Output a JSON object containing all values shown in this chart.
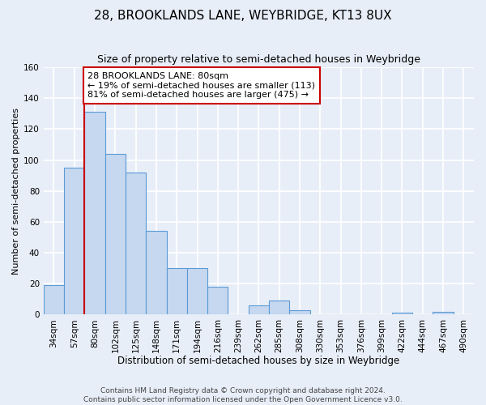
{
  "title": "28, BROOKLANDS LANE, WEYBRIDGE, KT13 8UX",
  "subtitle": "Size of property relative to semi-detached houses in Weybridge",
  "xlabel": "Distribution of semi-detached houses by size in Weybridge",
  "ylabel": "Number of semi-detached properties",
  "categories": [
    "34sqm",
    "57sqm",
    "80sqm",
    "102sqm",
    "125sqm",
    "148sqm",
    "171sqm",
    "194sqm",
    "216sqm",
    "239sqm",
    "262sqm",
    "285sqm",
    "308sqm",
    "330sqm",
    "353sqm",
    "376sqm",
    "399sqm",
    "422sqm",
    "444sqm",
    "467sqm",
    "490sqm"
  ],
  "values": [
    19,
    95,
    131,
    104,
    92,
    54,
    30,
    30,
    18,
    0,
    6,
    9,
    3,
    0,
    0,
    0,
    0,
    1,
    0,
    2,
    0
  ],
  "bar_color": "#c5d8f0",
  "bar_edge_color": "#5b9bd5",
  "bar_edge_width": 0.8,
  "property_line_index": 2,
  "property_line_color": "#cc0000",
  "ylim": [
    0,
    160
  ],
  "yticks": [
    0,
    20,
    40,
    60,
    80,
    100,
    120,
    140,
    160
  ],
  "annotation_line1": "28 BROOKLANDS LANE: 80sqm",
  "annotation_line2": "← 19% of semi-detached houses are smaller (113)",
  "annotation_line3": "81% of semi-detached houses are larger (475) →",
  "annotation_box_color": "#ffffff",
  "annotation_box_edge": "#cc0000",
  "bg_color": "#e8eef8",
  "grid_color": "#ffffff",
  "footer1": "Contains HM Land Registry data © Crown copyright and database right 2024.",
  "footer2": "Contains public sector information licensed under the Open Government Licence v3.0.",
  "title_fontsize": 11,
  "subtitle_fontsize": 9,
  "xlabel_fontsize": 8.5,
  "ylabel_fontsize": 8,
  "tick_fontsize": 7.5,
  "annotation_fontsize": 8,
  "footer_fontsize": 6.5
}
